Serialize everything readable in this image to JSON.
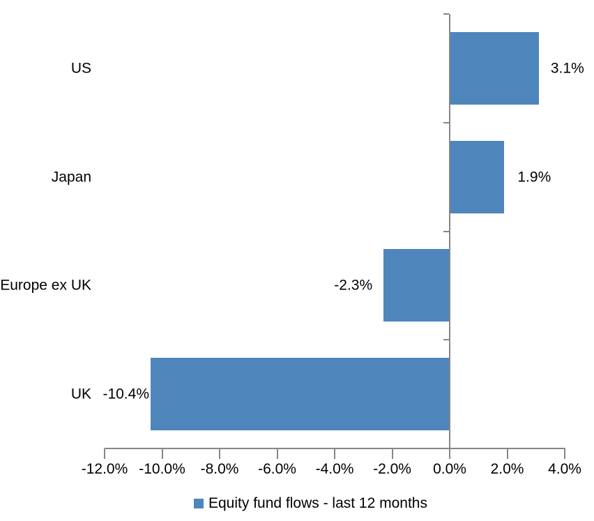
{
  "chart_data": {
    "type": "bar",
    "orientation": "horizontal",
    "title": "",
    "categories": [
      "US",
      "Japan",
      "Europe ex UK",
      "UK"
    ],
    "series": [
      {
        "name": "Equity fund flows - last 12 months",
        "values": [
          3.1,
          1.9,
          -2.3,
          -10.4
        ],
        "data_labels": [
          "3.1%",
          "1.9%",
          "-2.3%",
          "-10.4%"
        ],
        "color": "#4E86BC"
      }
    ],
    "xlabel": "",
    "ylabel": "",
    "xlim": [
      -12,
      4
    ],
    "x_ticks": [
      -12,
      -10,
      -8,
      -6,
      -4,
      -2,
      0,
      2,
      4
    ],
    "x_tick_labels": [
      "-12.0%",
      "-10.0%",
      "-8.0%",
      "-6.0%",
      "-4.0%",
      "-2.0%",
      "0.0%",
      "2.0%",
      "4.0%"
    ],
    "grid": false,
    "legend_position": "bottom",
    "axis_color": "#868686",
    "text_color": "#000000",
    "background_color": "#FFFFFF"
  }
}
